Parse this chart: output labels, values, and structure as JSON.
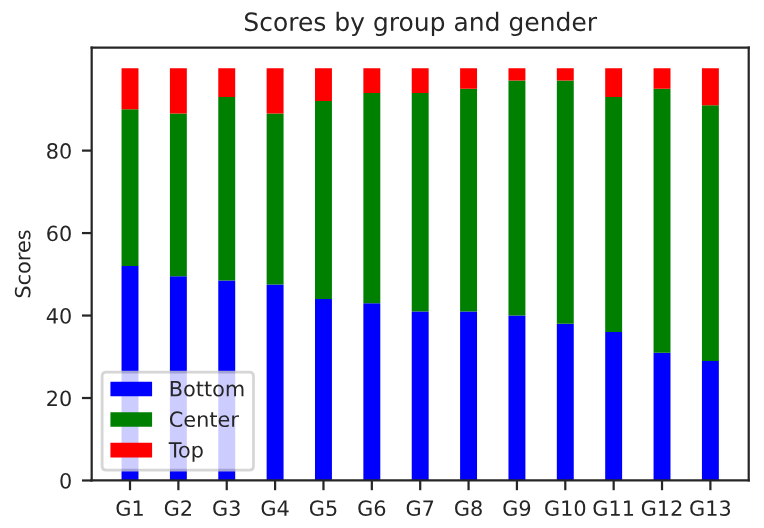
{
  "chart_data": {
    "type": "bar",
    "title": "Scores by group and gender",
    "ylabel": "Scores",
    "categories": [
      "G1",
      "G2",
      "G3",
      "G4",
      "G5",
      "G6",
      "G7",
      "G8",
      "G9",
      "G10",
      "G11",
      "G12",
      "G13"
    ],
    "stacked": true,
    "series": [
      {
        "name": "Bottom",
        "color": "#0000ff",
        "values": [
          52,
          49.5,
          48.5,
          47.5,
          44,
          43,
          41,
          41,
          40,
          38,
          36,
          31,
          29
        ]
      },
      {
        "name": "Center",
        "color": "#008000",
        "values": [
          38,
          39.5,
          44.5,
          41.5,
          48,
          51,
          53,
          54,
          57,
          59,
          57,
          64,
          62
        ]
      },
      {
        "name": "Top",
        "color": "#ff0000",
        "values": [
          10,
          11,
          7,
          11,
          8,
          6,
          6,
          5,
          3,
          3,
          7,
          5,
          9
        ]
      }
    ],
    "ylim": [
      0,
      105
    ],
    "yticks": [
      0,
      20,
      40,
      60,
      80
    ],
    "grid": false,
    "legend": "lower left"
  }
}
